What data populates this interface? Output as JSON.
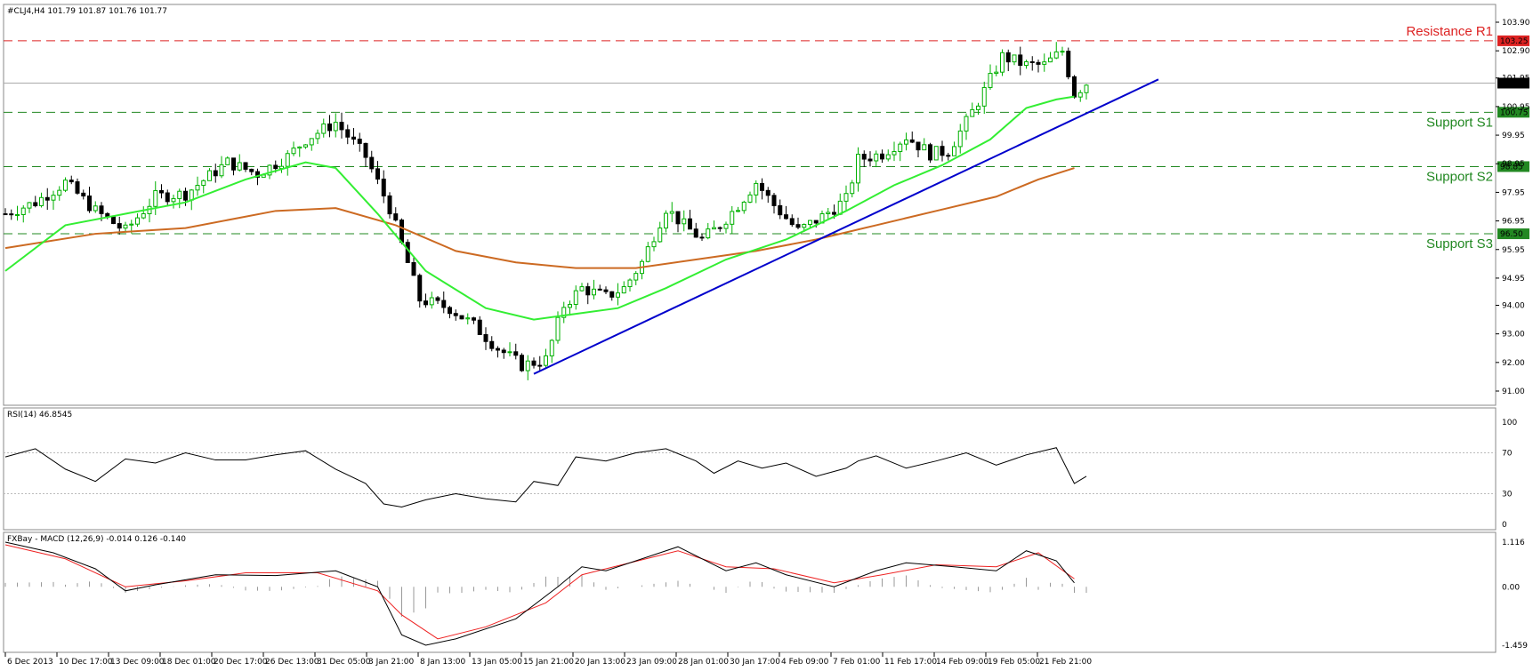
{
  "main_header": "#CLJ4,H4  101.79 101.87 101.76 101.77",
  "rsi_header": "RSI(14) 46.8545",
  "macd_header": "FXBay - MACD (12,26,9) -0.014 0.126 -0.140",
  "colors": {
    "bull": "#00b000",
    "bear": "#000000",
    "ma_fast": "#33ee33",
    "ma_slow": "#cc6a22",
    "trendline": "#0000cc",
    "resistance": "#dd2222",
    "support": "#228822",
    "macd_line": "#000000",
    "macd_signal": "#ee2222",
    "histogram": "#999999",
    "rsi": "#000000"
  },
  "levels": [
    {
      "name": "Resistance R1",
      "value": 103.25,
      "label": "103.25",
      "kind": "resistance"
    },
    {
      "name": "Support S1",
      "value": 100.75,
      "label": "100.75",
      "kind": "support"
    },
    {
      "name": "Support S2",
      "value": 98.85,
      "label": "98.85",
      "kind": "support"
    },
    {
      "name": "Support S3",
      "value": 96.5,
      "label": "96.50",
      "kind": "support"
    }
  ],
  "current_price": {
    "value": 101.77,
    "label": "101.77"
  },
  "price_axis": {
    "ticks": [
      {
        "value": 103.9,
        "label": "103.90"
      },
      {
        "value": 102.9,
        "label": "102.90"
      },
      {
        "value": 101.95,
        "label": "101.95"
      },
      {
        "value": 100.95,
        "label": "100.95"
      },
      {
        "value": 99.95,
        "label": "99.95"
      },
      {
        "value": 98.95,
        "label": "98.95"
      },
      {
        "value": 97.95,
        "label": "97.95"
      },
      {
        "value": 96.95,
        "label": "96.95"
      },
      {
        "value": 95.95,
        "label": "95.95"
      },
      {
        "value": 94.95,
        "label": "94.95"
      },
      {
        "value": 94.0,
        "label": "94.00"
      },
      {
        "value": 93.0,
        "label": "93.00"
      },
      {
        "value": 92.0,
        "label": "92.00"
      },
      {
        "value": 91.0,
        "label": "91.00"
      }
    ]
  },
  "rsi_axis": {
    "ticks": [
      "100",
      "70",
      "30",
      "0"
    ]
  },
  "macd_axis": {
    "ticks": [
      "1.116",
      "0.00",
      "-1.459"
    ]
  },
  "time_labels": [
    "6 Dec 2013",
    "10 Dec 17:00",
    "13 Dec 09:00",
    "18 Dec 01:00",
    "20 Dec 17:00",
    "26 Dec 13:00",
    "31 Dec 05:00",
    "3 Jan 21:00",
    "8 Jan 13:00",
    "13 Jan 05:00",
    "15 Jan 21:00",
    "20 Jan 13:00",
    "23 Jan 09:00",
    "28 Jan 01:00",
    "30 Jan 17:00",
    "4 Feb 09:00",
    "7 Feb 01:00",
    "11 Feb 17:00",
    "14 Feb 09:00",
    "19 Feb 05:00",
    "21 Feb 21:00"
  ],
  "chart_data": [
    {
      "type": "candlestick",
      "title": "#CLJ4,H4",
      "ylim": [
        91.0,
        103.9
      ],
      "close_path": [
        [
          0,
          97.2
        ],
        [
          5,
          97.6
        ],
        [
          10,
          98.3
        ],
        [
          15,
          97.3
        ],
        [
          20,
          96.6
        ],
        [
          25,
          97.8
        ],
        [
          30,
          97.9
        ],
        [
          37,
          99.0
        ],
        [
          42,
          98.6
        ],
        [
          47,
          99.2
        ],
        [
          50,
          99.8
        ],
        [
          55,
          100.4
        ],
        [
          60,
          99.2
        ],
        [
          64,
          97.4
        ],
        [
          69,
          94.2
        ],
        [
          74,
          93.9
        ],
        [
          78,
          93.3
        ],
        [
          82,
          92.5
        ],
        [
          86,
          91.9
        ],
        [
          90,
          92.1
        ],
        [
          93,
          94.0
        ],
        [
          96,
          94.6
        ],
        [
          100,
          94.3
        ],
        [
          103,
          94.6
        ],
        [
          106,
          95.5
        ],
        [
          110,
          97.4
        ],
        [
          113,
          96.8
        ],
        [
          116,
          96.3
        ],
        [
          119,
          96.8
        ],
        [
          122,
          97.5
        ],
        [
          125,
          98.3
        ],
        [
          128,
          97.5
        ],
        [
          132,
          96.6
        ],
        [
          136,
          97.1
        ],
        [
          140,
          97.7
        ],
        [
          142,
          99.1
        ],
        [
          146,
          99.3
        ],
        [
          150,
          99.9
        ],
        [
          154,
          99.3
        ],
        [
          157,
          99.4
        ],
        [
          160,
          100.4
        ],
        [
          163,
          101.5
        ],
        [
          166,
          102.7
        ],
        [
          170,
          102.4
        ],
        [
          173,
          102.4
        ],
        [
          176,
          102.9
        ],
        [
          178,
          101.4
        ],
        [
          180,
          101.77
        ]
      ],
      "ma_fast": [
        [
          0,
          95.2
        ],
        [
          10,
          96.8
        ],
        [
          20,
          97.2
        ],
        [
          30,
          97.6
        ],
        [
          40,
          98.4
        ],
        [
          50,
          99.0
        ],
        [
          55,
          98.8
        ],
        [
          62,
          97.2
        ],
        [
          70,
          95.2
        ],
        [
          80,
          93.9
        ],
        [
          88,
          93.5
        ],
        [
          95,
          93.7
        ],
        [
          102,
          93.9
        ],
        [
          110,
          94.6
        ],
        [
          120,
          95.6
        ],
        [
          130,
          96.3
        ],
        [
          140,
          97.3
        ],
        [
          148,
          98.2
        ],
        [
          156,
          98.9
        ],
        [
          164,
          99.8
        ],
        [
          170,
          100.9
        ],
        [
          175,
          101.2
        ],
        [
          178,
          101.3
        ]
      ],
      "ma_slow": [
        [
          0,
          96.0
        ],
        [
          15,
          96.5
        ],
        [
          30,
          96.7
        ],
        [
          45,
          97.3
        ],
        [
          55,
          97.4
        ],
        [
          65,
          96.8
        ],
        [
          75,
          95.9
        ],
        [
          85,
          95.5
        ],
        [
          95,
          95.3
        ],
        [
          105,
          95.3
        ],
        [
          115,
          95.6
        ],
        [
          125,
          95.9
        ],
        [
          135,
          96.3
        ],
        [
          145,
          96.8
        ],
        [
          155,
          97.3
        ],
        [
          165,
          97.8
        ],
        [
          172,
          98.4
        ],
        [
          178,
          98.8
        ]
      ],
      "trendline": [
        [
          88,
          91.6
        ],
        [
          192,
          101.9
        ]
      ]
    },
    {
      "type": "line",
      "title": "RSI(14) 46.8545",
      "ylim": [
        0,
        100
      ],
      "levels": [
        70,
        30
      ],
      "x": [
        0,
        5,
        10,
        15,
        20,
        25,
        30,
        35,
        40,
        45,
        50,
        55,
        60,
        63,
        66,
        70,
        75,
        80,
        85,
        88,
        92,
        95,
        100,
        105,
        110,
        115,
        118,
        122,
        126,
        130,
        135,
        140,
        142,
        145,
        150,
        155,
        160,
        165,
        170,
        175,
        178,
        180
      ],
      "values": [
        66,
        74,
        54,
        42,
        64,
        60,
        70,
        63,
        63,
        68,
        72,
        54,
        40,
        20,
        17,
        24,
        30,
        25,
        22,
        42,
        38,
        66,
        62,
        70,
        74,
        62,
        50,
        62,
        55,
        60,
        47,
        55,
        62,
        67,
        55,
        62,
        70,
        58,
        68,
        75,
        40,
        47
      ]
    },
    {
      "type": "line",
      "title": "MACD (12,26,9)",
      "ylim": [
        -1.459,
        1.116
      ],
      "series": [
        {
          "values": [
            [
              0,
              1.116
            ],
            [
              8,
              0.85
            ],
            [
              15,
              0.45
            ],
            [
              20,
              -0.1
            ],
            [
              25,
              0.05
            ],
            [
              35,
              0.3
            ],
            [
              45,
              0.28
            ],
            [
              55,
              0.4
            ],
            [
              62,
              0.0
            ],
            [
              66,
              -1.2
            ],
            [
              70,
              -1.459
            ],
            [
              75,
              -1.3
            ],
            [
              85,
              -0.8
            ],
            [
              92,
              0.0
            ],
            [
              96,
              0.5
            ],
            [
              100,
              0.4
            ],
            [
              108,
              0.8
            ],
            [
              112,
              1.0
            ],
            [
              120,
              0.4
            ],
            [
              125,
              0.6
            ],
            [
              130,
              0.3
            ],
            [
              138,
              0.0
            ],
            [
              145,
              0.4
            ],
            [
              150,
              0.6
            ],
            [
              158,
              0.5
            ],
            [
              165,
              0.4
            ],
            [
              170,
              0.9
            ],
            [
              175,
              0.65
            ],
            [
              178,
              0.1
            ]
          ]
        },
        {
          "values": [
            [
              0,
              1.05
            ],
            [
              10,
              0.7
            ],
            [
              20,
              0.0
            ],
            [
              30,
              0.15
            ],
            [
              40,
              0.35
            ],
            [
              52,
              0.35
            ],
            [
              62,
              -0.1
            ],
            [
              66,
              -0.7
            ],
            [
              72,
              -1.3
            ],
            [
              80,
              -1.0
            ],
            [
              90,
              -0.4
            ],
            [
              96,
              0.3
            ],
            [
              104,
              0.6
            ],
            [
              112,
              0.9
            ],
            [
              120,
              0.5
            ],
            [
              128,
              0.45
            ],
            [
              138,
              0.1
            ],
            [
              146,
              0.3
            ],
            [
              155,
              0.55
            ],
            [
              165,
              0.5
            ],
            [
              172,
              0.85
            ],
            [
              178,
              0.2
            ]
          ]
        }
      ]
    }
  ]
}
